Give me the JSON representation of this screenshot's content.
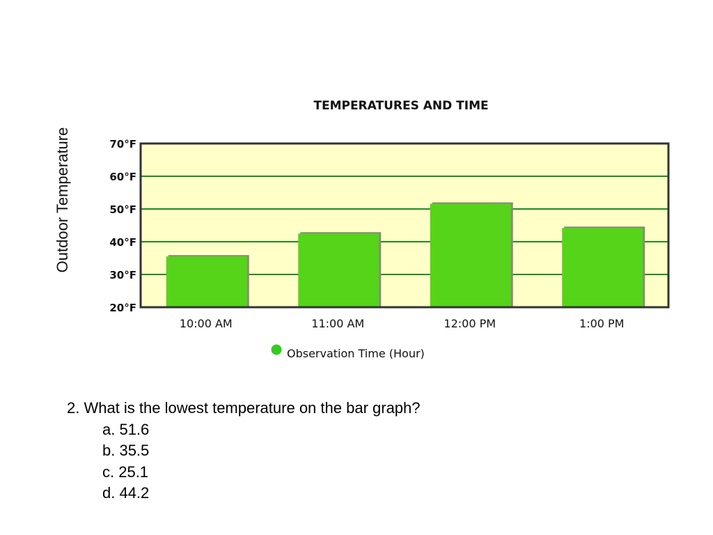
{
  "chart_data": {
    "type": "bar",
    "title": "TEMPERATURES AND TIME",
    "ylabel": "Outdoor Temperature",
    "xlabel": "",
    "categories": [
      "10:00 AM",
      "11:00 AM",
      "12:00 PM",
      "1:00 PM"
    ],
    "series": [
      {
        "name": "Observation Time (Hour)",
        "values": [
          35.5,
          42.5,
          51.6,
          44.2
        ]
      }
    ],
    "ylim": [
      20,
      70
    ],
    "yticks": [
      "20°F",
      "30°F",
      "40°F",
      "50°F",
      "60°F",
      "70°F"
    ],
    "grid": true,
    "legend": "bottom",
    "colors": {
      "bar": "#55d41a",
      "bar_shadow": "#8a8a78",
      "plot_bg": "#ffffc8",
      "grid": "#1e8c1e",
      "frame": "#333333",
      "legend_marker": "#33cc22"
    }
  },
  "question": {
    "text": "2. What is the lowest temperature on the bar graph?",
    "options": [
      "a. 51.6",
      "b. 35.5",
      "c. 25.1",
      "d. 44.2"
    ]
  }
}
